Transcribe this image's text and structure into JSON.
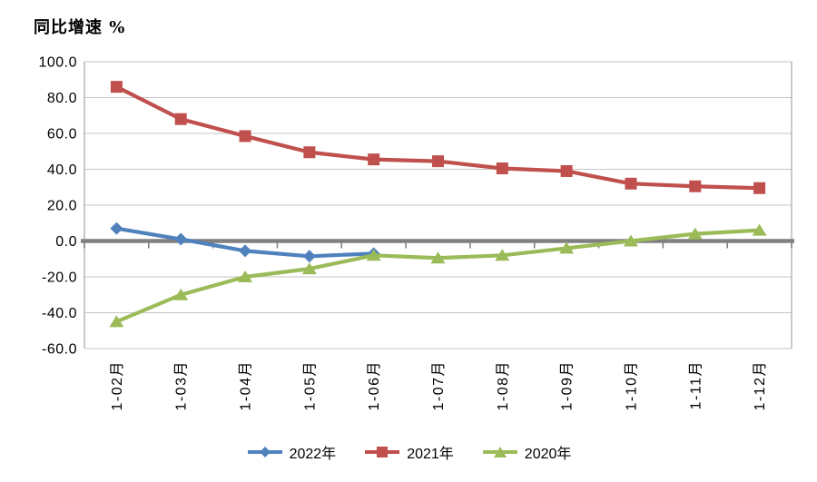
{
  "page": {
    "background": "#FFFFFF"
  },
  "chart_data": {
    "type": "line",
    "title": "同比增速 %",
    "categories": [
      "1-02月",
      "1-03月",
      "1-04月",
      "1-05月",
      "1-06月",
      "1-07月",
      "1-08月",
      "1-09月",
      "1-10月",
      "1-11月",
      "1-12月"
    ],
    "series": [
      {
        "name": "2022年",
        "color": "#4F81BD",
        "marker": "diamond",
        "values": [
          7,
          1,
          -5.5,
          -8.5,
          -7,
          null,
          null,
          null,
          null,
          null,
          null
        ]
      },
      {
        "name": "2021年",
        "color": "#C0504D",
        "marker": "square",
        "values": [
          86,
          68,
          58.5,
          49.5,
          45.5,
          44.5,
          40.5,
          39,
          32,
          30.5,
          29.5
        ]
      },
      {
        "name": "2020年",
        "color": "#9BBB59",
        "marker": "triangle",
        "values": [
          -45,
          -30,
          -20,
          -15.5,
          -8,
          -9.5,
          -8,
          -4,
          0,
          4,
          6
        ]
      }
    ],
    "y_axis": {
      "min": -60,
      "max": 100,
      "step": 20,
      "tick_labels": [
        "100.0",
        "80.0",
        "60.0",
        "40.0",
        "20.0",
        "0.0",
        "-20.0",
        "-40.0",
        "-60.0"
      ]
    },
    "x_axis": {
      "label": ""
    },
    "legend_position": "bottom",
    "grid": true,
    "colors": {
      "gridline": "#C6C6C6",
      "zero_line": "#808080",
      "axis_border": "#A6A6A6",
      "text": "#000000"
    }
  }
}
